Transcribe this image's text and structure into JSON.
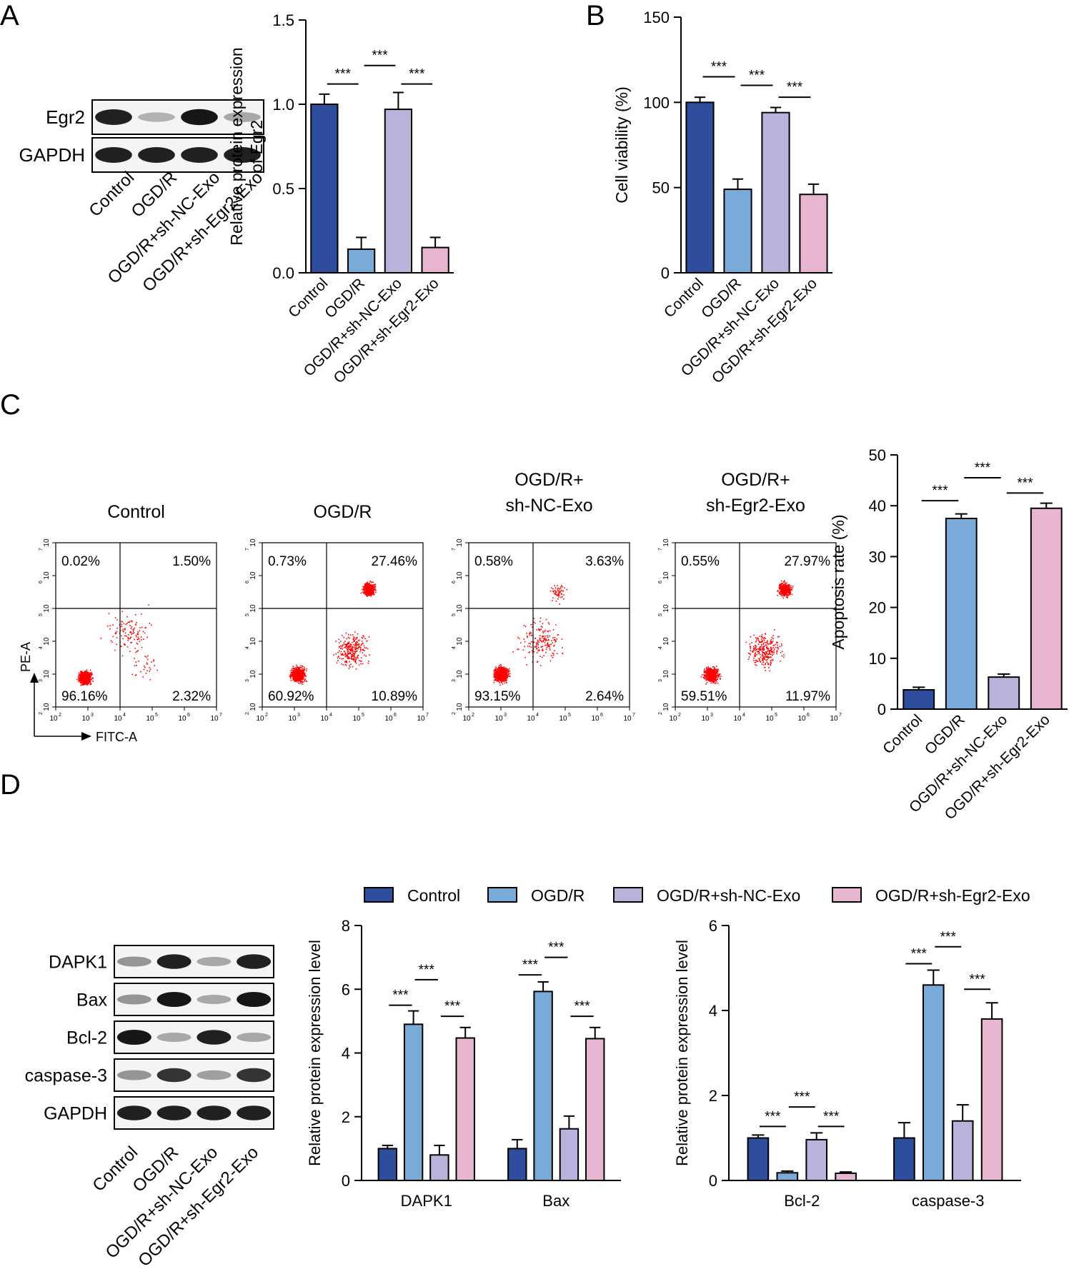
{
  "colors": {
    "control": "#2e4d9c",
    "ogdr": "#7aaad8",
    "nc": "#b9b3dc",
    "egr2": "#e8b6d1",
    "axis": "#000000",
    "dots": "#ff0000"
  },
  "groups": [
    "Control",
    "OGD/R",
    "OGD/R+sh-NC-Exo",
    "OGD/R+sh-Egr2-Exo"
  ],
  "panel_labels": {
    "a": "A",
    "b": "B",
    "c": "C",
    "d": "D"
  },
  "blots": {
    "a_rows": [
      "Egr2",
      "GAPDH"
    ],
    "d_rows": [
      "DAPK1",
      "Bax",
      "Bcl-2",
      "caspase-3",
      "GAPDH"
    ],
    "band_levels_a": [
      [
        0.9,
        0.15,
        0.95,
        0.2
      ],
      [
        0.9,
        0.9,
        0.9,
        0.9
      ]
    ],
    "band_levels_d": [
      [
        0.3,
        0.9,
        0.2,
        0.9
      ],
      [
        0.3,
        0.95,
        0.2,
        0.95
      ],
      [
        0.95,
        0.2,
        0.9,
        0.2
      ],
      [
        0.3,
        0.8,
        0.25,
        0.8
      ],
      [
        0.9,
        0.9,
        0.9,
        0.9
      ]
    ]
  },
  "flow": {
    "titles": [
      [
        "Control"
      ],
      [
        "OGD/R"
      ],
      [
        "OGD/R+",
        "sh-NC-Exo"
      ],
      [
        "OGD/R+",
        "sh-Egr2-Exo"
      ]
    ],
    "quadrants": [
      [
        "0.02%",
        "1.50%",
        "96.16%",
        "2.32%"
      ],
      [
        "0.73%",
        "27.46%",
        "60.92%",
        "10.89%"
      ],
      [
        "0.58%",
        "3.63%",
        "93.15%",
        "2.64%"
      ],
      [
        "0.55%",
        "27.97%",
        "59.51%",
        "11.97%"
      ]
    ],
    "x_label": "FITC-A",
    "y_label": "PE-A",
    "tick_bases": [
      "10",
      "10",
      "10",
      "10",
      "10",
      "10"
    ],
    "tick_exps": [
      "2",
      "3",
      "4",
      "5",
      "6",
      "7"
    ]
  },
  "legend": [
    "Control",
    "OGD/R",
    "OGD/R+sh-NC-Exo",
    "OGD/R+sh-Egr2-Exo"
  ],
  "chart_data": [
    {
      "id": "A",
      "type": "bar",
      "categories": [
        "Control",
        "OGD/R",
        "OGD/R+sh-NC-Exo",
        "OGD/R+sh-Egr2-Exo"
      ],
      "values": [
        1.0,
        0.14,
        0.97,
        0.15
      ],
      "errors": [
        0.06,
        0.07,
        0.1,
        0.06
      ],
      "ylabel": "Relative protein expression of Egr2",
      "ylabel_lines": [
        "Relative protein expression",
        "of Egr2"
      ],
      "ylim": [
        0,
        1.5
      ],
      "yticks": [
        "0.0",
        "0.5",
        "1.0",
        "1.5"
      ],
      "significance": [
        {
          "from": 0,
          "to": 1,
          "label": "***",
          "y": 1.12
        },
        {
          "from": 1,
          "to": 2,
          "label": "***",
          "y": 1.23
        },
        {
          "from": 2,
          "to": 3,
          "label": "***",
          "y": 1.12
        }
      ]
    },
    {
      "id": "B",
      "type": "bar",
      "categories": [
        "Control",
        "OGD/R",
        "OGD/R+sh-NC-Exo",
        "OGD/R+sh-Egr2-Exo"
      ],
      "values": [
        100,
        49,
        94,
        46
      ],
      "errors": [
        3,
        6,
        3,
        6
      ],
      "ylabel": "Cell viability (%)",
      "ylabel_lines": [
        "Cell viability (%)"
      ],
      "ylim": [
        0,
        150
      ],
      "yticks": [
        "0",
        "50",
        "100",
        "150"
      ],
      "significance": [
        {
          "from": 0,
          "to": 1,
          "label": "***",
          "y": 115
        },
        {
          "from": 1,
          "to": 2,
          "label": "***",
          "y": 110
        },
        {
          "from": 2,
          "to": 3,
          "label": "***",
          "y": 103
        }
      ]
    },
    {
      "id": "C",
      "type": "bar",
      "categories": [
        "Control",
        "OGD/R",
        "OGD/R+sh-NC-Exo",
        "OGD/R+sh-Egr2-Exo"
      ],
      "values": [
        3.8,
        37.5,
        6.3,
        39.5
      ],
      "errors": [
        0.5,
        0.9,
        0.6,
        1.0
      ],
      "ylabel": "Apoptosis rate (%)",
      "ylabel_lines": [
        "Apoptosis rate (%)"
      ],
      "ylim": [
        0,
        50
      ],
      "yticks": [
        "0",
        "10",
        "20",
        "30",
        "40",
        "50"
      ],
      "significance": [
        {
          "from": 0,
          "to": 1,
          "label": "***",
          "y": 41
        },
        {
          "from": 1,
          "to": 2,
          "label": "***",
          "y": 45.5
        },
        {
          "from": 2,
          "to": 3,
          "label": "***",
          "y": 42.5
        }
      ]
    },
    {
      "id": "D-left",
      "type": "bar",
      "categories": [
        "DAPK1",
        "Bax"
      ],
      "series": [
        {
          "name": "Control",
          "values": [
            1.0,
            1.0
          ],
          "errors": [
            0.1,
            0.28
          ]
        },
        {
          "name": "OGD/R",
          "values": [
            4.9,
            5.93
          ],
          "errors": [
            0.42,
            0.3
          ]
        },
        {
          "name": "OGD/R+sh-NC-Exo",
          "values": [
            0.8,
            1.62
          ],
          "errors": [
            0.3,
            0.4
          ]
        },
        {
          "name": "OGD/R+sh-Egr2-Exo",
          "values": [
            4.47,
            4.45
          ],
          "errors": [
            0.33,
            0.35
          ]
        }
      ],
      "ylabel": "Relative protein expression level",
      "ylabel_lines": [
        "Relative protein expression level"
      ],
      "ylim": [
        0,
        8
      ],
      "yticks": [
        "0",
        "2",
        "4",
        "6",
        "8"
      ],
      "significance": [
        {
          "cat": 0,
          "from": 0,
          "to": 1,
          "label": "***",
          "y": 5.5
        },
        {
          "cat": 0,
          "from": 1,
          "to": 2,
          "label": "***",
          "y": 6.3
        },
        {
          "cat": 0,
          "from": 2,
          "to": 3,
          "label": "***",
          "y": 5.15
        },
        {
          "cat": 1,
          "from": 0,
          "to": 1,
          "label": "***",
          "y": 6.45
        },
        {
          "cat": 1,
          "from": 1,
          "to": 2,
          "label": "***",
          "y": 7.0
        },
        {
          "cat": 1,
          "from": 2,
          "to": 3,
          "label": "***",
          "y": 5.15
        }
      ]
    },
    {
      "id": "D-right",
      "type": "bar",
      "categories": [
        "Bcl-2",
        "caspase-3"
      ],
      "series": [
        {
          "name": "Control",
          "values": [
            1.0,
            1.0
          ],
          "errors": [
            0.07,
            0.36
          ]
        },
        {
          "name": "OGD/R",
          "values": [
            0.18,
            4.6
          ],
          "errors": [
            0.04,
            0.35
          ]
        },
        {
          "name": "OGD/R+sh-NC-Exo",
          "values": [
            0.96,
            1.4
          ],
          "errors": [
            0.16,
            0.38
          ]
        },
        {
          "name": "OGD/R+sh-Egr2-Exo",
          "values": [
            0.17,
            3.8
          ],
          "errors": [
            0.03,
            0.38
          ]
        }
      ],
      "ylabel": "Relative protein expression level",
      "ylabel_lines": [
        "Relative protein expression level"
      ],
      "ylim": [
        0,
        6
      ],
      "yticks": [
        "0",
        "2",
        "4",
        "6"
      ],
      "significance": [
        {
          "cat": 0,
          "from": 0,
          "to": 1,
          "label": "***",
          "y": 1.27
        },
        {
          "cat": 0,
          "from": 1,
          "to": 2,
          "label": "***",
          "y": 1.73
        },
        {
          "cat": 0,
          "from": 2,
          "to": 3,
          "label": "***",
          "y": 1.27
        },
        {
          "cat": 1,
          "from": 0,
          "to": 1,
          "label": "***",
          "y": 5.1
        },
        {
          "cat": 1,
          "from": 1,
          "to": 2,
          "label": "***",
          "y": 5.5
        },
        {
          "cat": 1,
          "from": 2,
          "to": 3,
          "label": "***",
          "y": 4.5
        }
      ]
    }
  ]
}
